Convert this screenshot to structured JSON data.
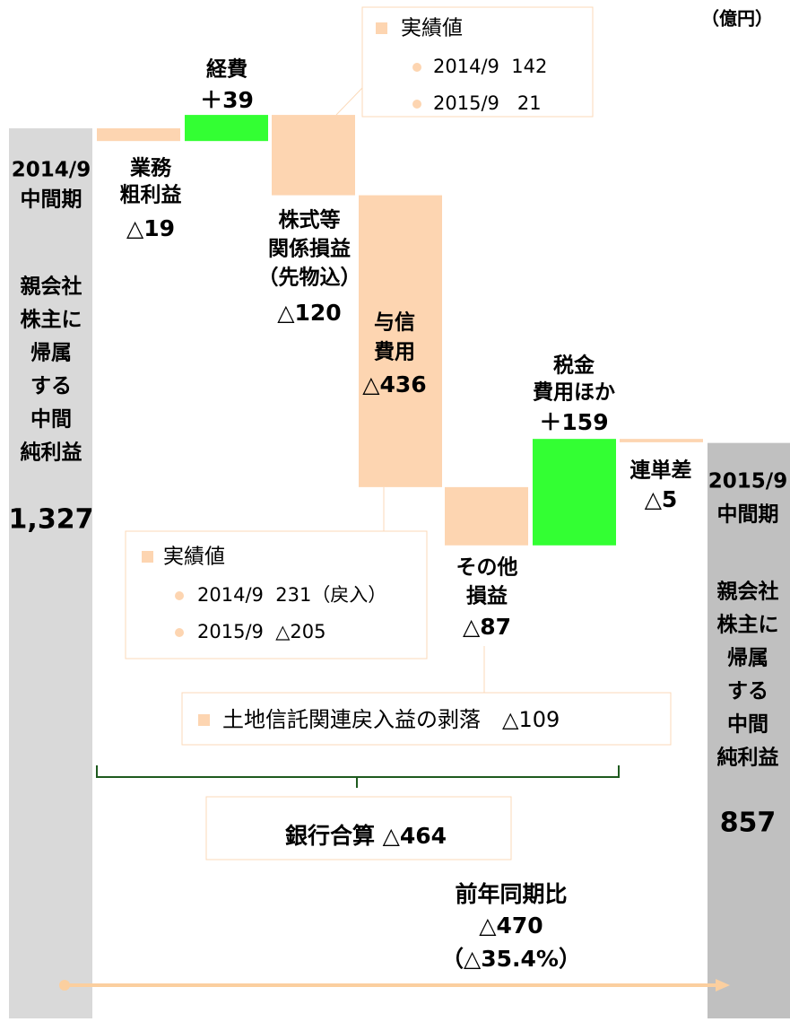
{
  "chart_data": {
    "type": "waterfall",
    "unit": "（億円）",
    "start": {
      "lines": [
        "2014/9",
        "中間期"
      ],
      "caption": [
        "親会社",
        "株主に",
        "帰属",
        "する",
        "中間",
        "純利益"
      ],
      "value": 1327,
      "value_label": "1,327",
      "color": "#d9d9d9"
    },
    "end": {
      "lines": [
        "2015/9",
        "中間期"
      ],
      "caption": [
        "親会社",
        "株主に",
        "帰属",
        "する",
        "中間",
        "純利益"
      ],
      "value": 857,
      "color": "#c0c0c0"
    },
    "categories": [
      [
        "業務",
        "粗利益"
      ],
      [
        "経費"
      ],
      [
        "株式等",
        "関係損益",
        "（先物込）"
      ],
      [
        "与信",
        "費用"
      ],
      [
        "その他",
        "損益"
      ],
      [
        "税金",
        "費用ほか"
      ],
      [
        "連単差"
      ]
    ],
    "values": [
      -19,
      39,
      -120,
      -436,
      -87,
      159,
      -5
    ],
    "value_labels": [
      "△19",
      "＋39",
      "△120",
      "△436",
      "△87",
      "＋159",
      "△5"
    ],
    "decrease_color": "#fdd5b1",
    "increase_color": "#33ff33",
    "notes": [
      {
        "title": "実績値",
        "items": [
          "2014/9  142",
          "2015/9   21"
        ]
      },
      {
        "title": "実績値",
        "items": [
          "2014/9  231（戻入）",
          "2015/9  △205"
        ]
      },
      {
        "title": "土地信託関連戻入益の剥落　△109"
      }
    ],
    "bank_total": "銀行合算 △464",
    "comparison": [
      "前年同期比",
      "△470",
      "（△35.4%）"
    ]
  }
}
